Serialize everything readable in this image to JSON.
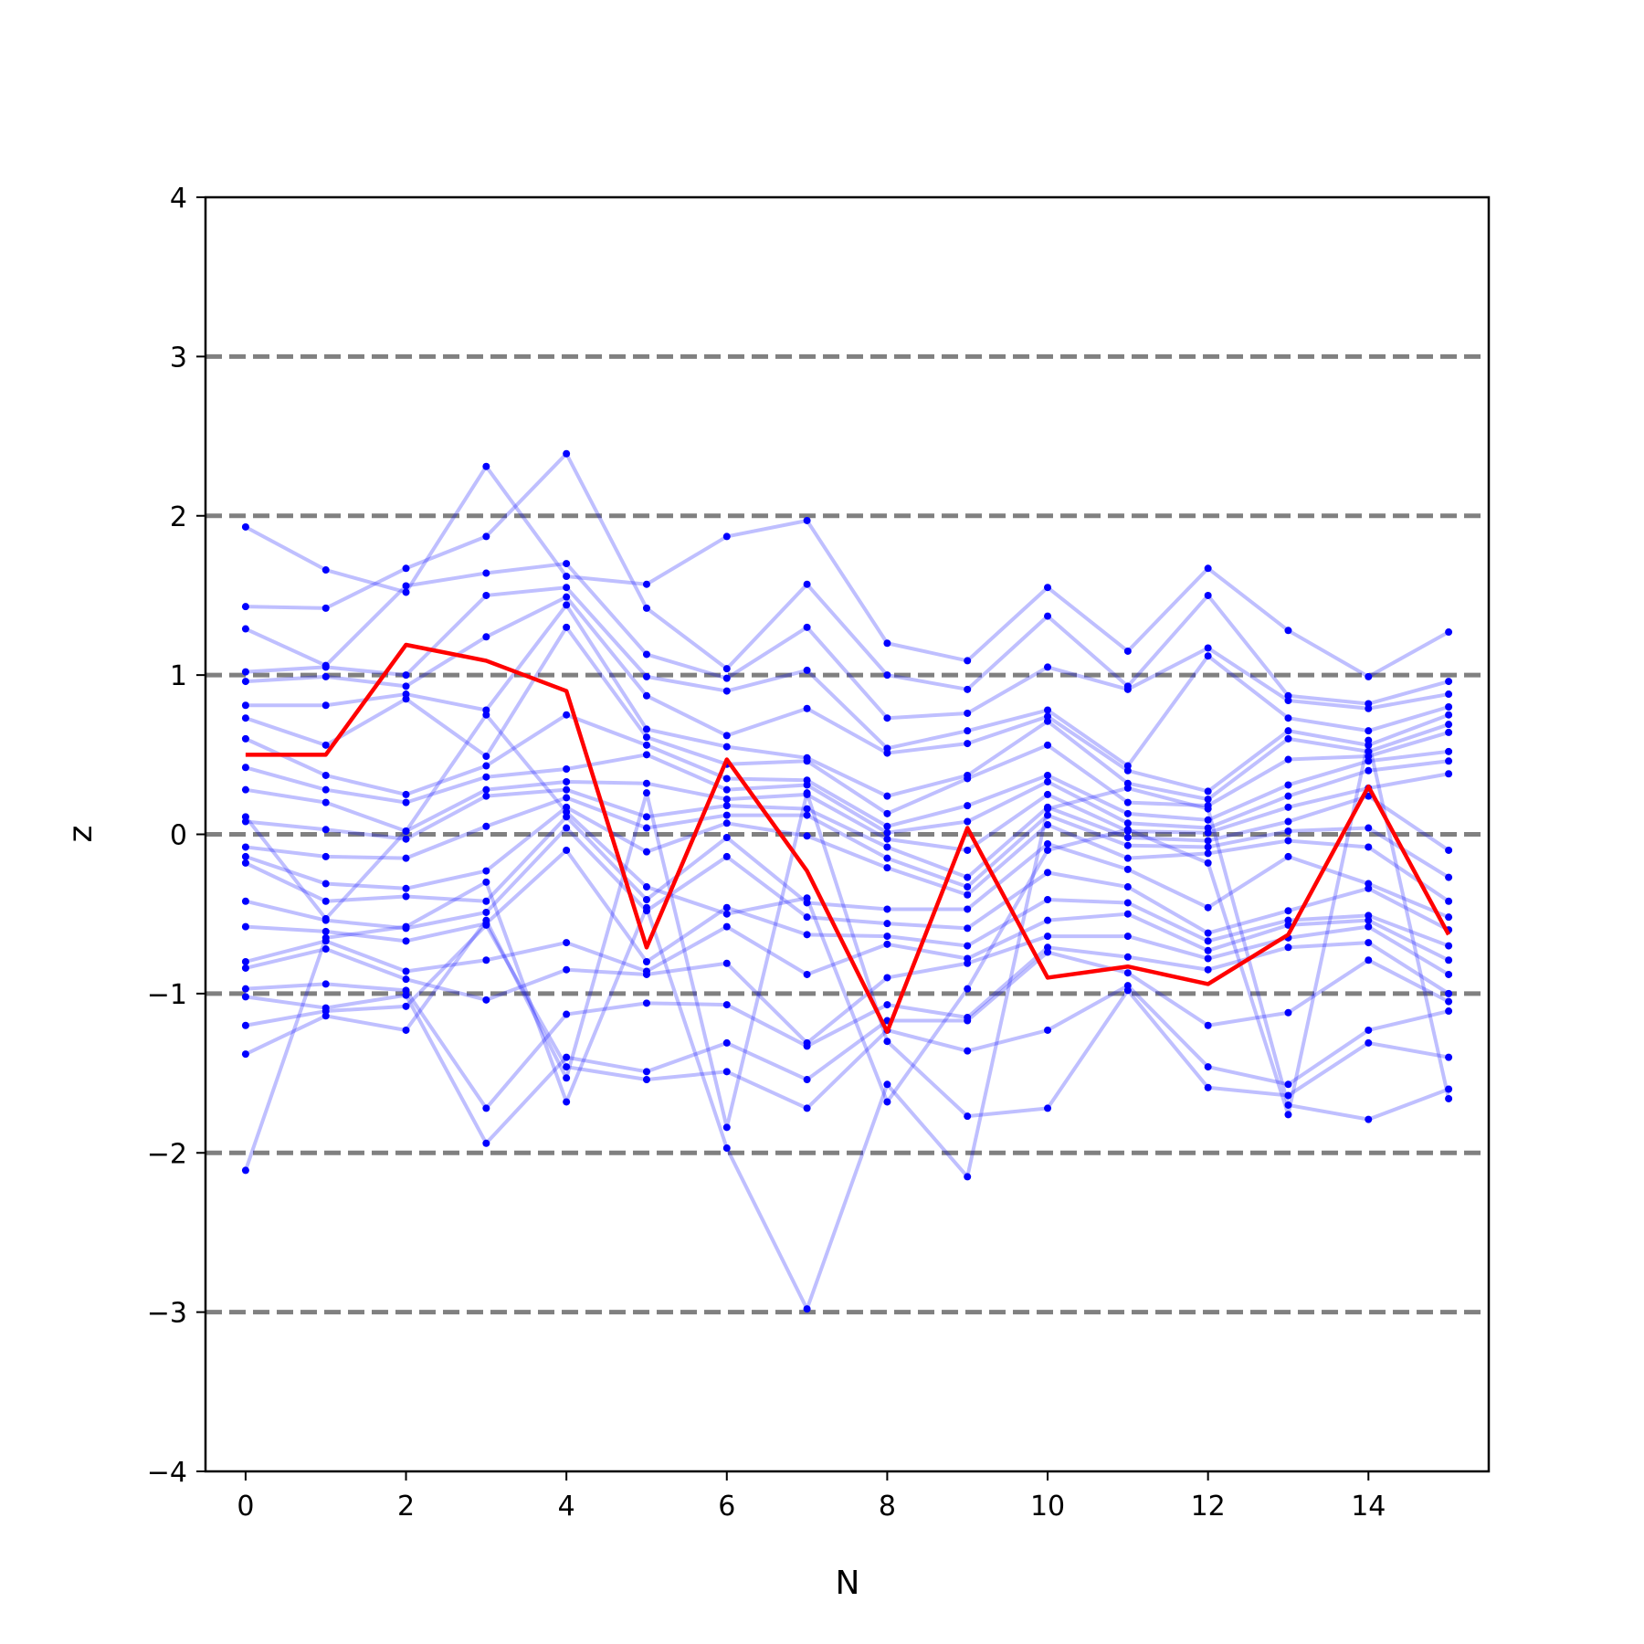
{
  "chart_data": {
    "type": "line",
    "title": "",
    "xlabel": "N",
    "ylabel": "z",
    "xlim": [
      -0.5,
      15.5
    ],
    "ylim": [
      -4,
      4
    ],
    "x": [
      0,
      1,
      2,
      3,
      4,
      5,
      6,
      7,
      8,
      9,
      10,
      11,
      12,
      13,
      14,
      15
    ],
    "xticks": [
      0,
      2,
      4,
      6,
      8,
      10,
      12,
      14
    ],
    "xtick_labels": [
      "0",
      "2",
      "4",
      "6",
      "8",
      "10",
      "12",
      "14"
    ],
    "yticks": [
      -4,
      -3,
      -2,
      -1,
      0,
      1,
      2,
      3,
      4
    ],
    "ytick_labels": [
      "−4",
      "−3",
      "−2",
      "−1",
      "0",
      "1",
      "2",
      "3",
      "4"
    ],
    "reference_lines": [
      -3,
      -2,
      -1,
      0,
      1,
      2,
      3
    ],
    "reference_line_color": "#808080",
    "highlight_color": "#ff0000",
    "sample_color": "#0000ff",
    "grid": false,
    "legend": "none",
    "highlight_series": {
      "values": [
        0.5,
        0.5,
        1.19,
        1.09,
        0.9,
        -0.71,
        0.47,
        -0.23,
        -1.24,
        0.04,
        -0.9,
        -0.83,
        -0.94,
        -0.63,
        0.3,
        -0.63
      ]
    },
    "series": [
      {
        "values": [
          1.93,
          1.66,
          1.52,
          2.31,
          1.62,
          1.57,
          1.87,
          1.97,
          1.2,
          1.09,
          1.55,
          1.15,
          1.67,
          1.28,
          0.99,
          1.27
        ]
      },
      {
        "values": [
          1.43,
          1.42,
          1.67,
          1.87,
          2.39,
          1.42,
          1.04,
          1.57,
          1.0,
          0.91,
          1.37,
          0.93,
          1.5,
          0.87,
          0.82,
          0.96
        ]
      },
      {
        "values": [
          1.29,
          1.06,
          1.56,
          1.64,
          1.7,
          1.13,
          0.98,
          1.3,
          0.73,
          0.76,
          1.05,
          0.91,
          1.17,
          0.84,
          0.79,
          0.88
        ]
      },
      {
        "values": [
          1.02,
          1.05,
          1.0,
          1.5,
          1.55,
          0.99,
          0.9,
          1.03,
          0.54,
          0.65,
          0.78,
          0.43,
          1.12,
          0.73,
          0.65,
          0.8
        ]
      },
      {
        "values": [
          0.96,
          0.99,
          0.93,
          1.24,
          1.49,
          0.87,
          0.62,
          0.79,
          0.51,
          0.57,
          0.74,
          0.4,
          0.27,
          0.65,
          0.56,
          0.75
        ]
      },
      {
        "values": [
          0.81,
          0.81,
          0.88,
          0.78,
          1.44,
          0.66,
          0.55,
          0.48,
          0.24,
          0.37,
          0.71,
          0.32,
          0.22,
          0.6,
          0.52,
          0.69
        ]
      },
      {
        "values": [
          0.73,
          0.56,
          0.85,
          0.49,
          1.3,
          0.61,
          0.44,
          0.46,
          0.13,
          0.35,
          0.56,
          0.2,
          0.18,
          0.47,
          0.49,
          0.64
        ]
      },
      {
        "values": [
          0.6,
          0.37,
          0.25,
          0.43,
          0.75,
          0.56,
          0.35,
          0.34,
          0.05,
          0.18,
          0.37,
          0.13,
          0.09,
          0.31,
          0.46,
          0.52
        ]
      },
      {
        "values": [
          0.42,
          0.28,
          0.2,
          0.36,
          0.41,
          0.5,
          0.28,
          0.31,
          0.01,
          0.08,
          0.33,
          0.07,
          0.04,
          0.24,
          0.4,
          0.46
        ]
      },
      {
        "values": [
          0.28,
          0.2,
          0.02,
          0.28,
          0.33,
          0.32,
          0.22,
          0.25,
          -0.03,
          -0.1,
          0.25,
          0.02,
          0.01,
          0.17,
          0.29,
          0.38
        ]
      },
      {
        "values": [
          0.08,
          0.03,
          -0.03,
          0.24,
          0.28,
          0.11,
          0.18,
          0.16,
          -0.08,
          -0.27,
          0.17,
          -0.02,
          -0.04,
          0.08,
          0.24,
          -0.1
        ]
      },
      {
        "values": [
          -0.08,
          -0.14,
          -0.15,
          0.05,
          0.23,
          0.04,
          0.12,
          0.12,
          -0.15,
          -0.33,
          0.12,
          -0.07,
          -0.08,
          0.02,
          0.04,
          -0.27
        ]
      },
      {
        "values": [
          -0.14,
          -0.31,
          -0.34,
          -0.23,
          0.17,
          -0.11,
          0.07,
          -0.01,
          -0.21,
          -0.38,
          0.06,
          -0.15,
          -0.12,
          -0.04,
          -0.08,
          -0.42
        ]
      },
      {
        "values": [
          -0.18,
          -0.42,
          -0.39,
          -0.42,
          0.11,
          -0.41,
          -0.02,
          -0.43,
          -0.47,
          -0.47,
          -0.06,
          -0.22,
          -0.46,
          -0.14,
          -0.31,
          -0.52
        ]
      },
      {
        "values": [
          -0.42,
          -0.54,
          -0.59,
          -0.49,
          0.04,
          -0.48,
          -0.14,
          -0.52,
          -0.56,
          -0.59,
          -0.24,
          -0.33,
          -0.62,
          -0.48,
          -0.34,
          -0.6
        ]
      },
      {
        "values": [
          -0.58,
          -0.61,
          -0.67,
          -0.56,
          -0.1,
          -0.8,
          -0.46,
          -0.63,
          -0.64,
          -0.7,
          -0.41,
          -0.43,
          -0.67,
          -0.54,
          -0.51,
          -0.7
        ]
      },
      {
        "values": [
          -0.8,
          -0.67,
          -0.86,
          -0.79,
          -0.68,
          -0.86,
          -0.58,
          -0.88,
          -0.69,
          -0.78,
          -0.54,
          -0.5,
          -0.73,
          -0.57,
          -0.54,
          -0.79
        ]
      },
      {
        "values": [
          -0.84,
          -0.72,
          -0.91,
          -1.04,
          -0.85,
          -0.88,
          -0.81,
          -1.31,
          -0.9,
          -0.81,
          -0.64,
          -0.64,
          -0.78,
          -0.65,
          -0.58,
          -0.88
        ]
      },
      {
        "values": [
          -0.97,
          -0.94,
          -0.98,
          -1.72,
          -1.13,
          -1.06,
          -1.07,
          -1.33,
          -1.07,
          -1.15,
          -0.71,
          -0.77,
          -0.85,
          -0.71,
          -0.68,
          -1.0
        ]
      },
      {
        "values": [
          -1.02,
          -1.09,
          -1.01,
          -1.94,
          -1.4,
          -1.49,
          -1.31,
          -1.54,
          -1.17,
          -1.17,
          -0.74,
          -0.87,
          -1.2,
          -1.12,
          -0.79,
          -1.05
        ]
      },
      {
        "values": [
          -1.2,
          -1.11,
          -1.08,
          -0.57,
          -1.46,
          -1.54,
          -1.49,
          -1.72,
          -1.23,
          -1.36,
          -1.23,
          -0.95,
          -1.46,
          -1.57,
          -1.23,
          -1.11
        ]
      },
      {
        "values": [
          -1.38,
          -1.14,
          -1.23,
          -0.54,
          -1.53,
          0.26,
          -1.84,
          0.26,
          -1.3,
          -1.77,
          -1.72,
          -0.98,
          -1.59,
          -1.64,
          -1.31,
          -1.4
        ]
      },
      {
        "values": [
          -2.11,
          -0.65,
          -0.58,
          -0.3,
          -1.68,
          -0.46,
          -1.97,
          -2.98,
          -1.57,
          -2.15,
          0.16,
          0.29,
          0.16,
          -1.7,
          -1.79,
          -1.6
        ]
      },
      {
        "values": [
          0.11,
          -0.53,
          0.02,
          0.75,
          0.14,
          -0.33,
          -0.5,
          -0.4,
          -1.68,
          -0.97,
          -0.1,
          0.03,
          -0.18,
          -1.76,
          0.59,
          -1.66
        ]
      }
    ]
  }
}
